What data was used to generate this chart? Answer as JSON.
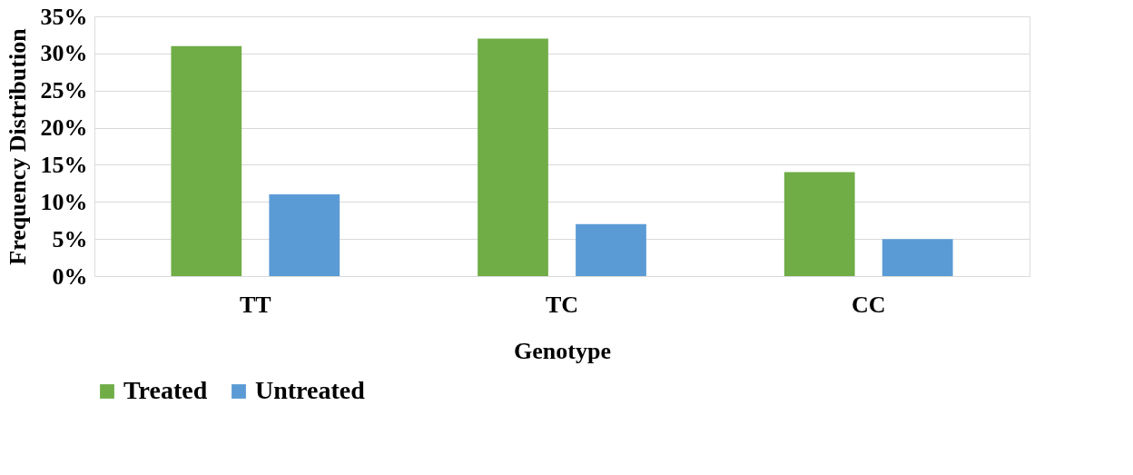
{
  "chart_data": {
    "type": "bar",
    "xlabel": "Genotype",
    "ylabel": "Frequency Distribution",
    "categories": [
      "TT",
      "TC",
      "CC"
    ],
    "series": [
      {
        "name": "Treated",
        "color": "#70ad47",
        "values": [
          31,
          32,
          14
        ]
      },
      {
        "name": "Untreated",
        "color": "#5b9bd5",
        "values": [
          11,
          7,
          5
        ]
      }
    ],
    "ylim": [
      0,
      35
    ],
    "yticks": [
      {
        "value": 0,
        "label": "0%"
      },
      {
        "value": 5,
        "label": "5%"
      },
      {
        "value": 10,
        "label": "10%"
      },
      {
        "value": 15,
        "label": "15%"
      },
      {
        "value": 20,
        "label": "20%"
      },
      {
        "value": 25,
        "label": "25%"
      },
      {
        "value": 30,
        "label": "30%"
      },
      {
        "value": 35,
        "label": "35%"
      }
    ],
    "grid": "y",
    "legend": "bottom"
  }
}
